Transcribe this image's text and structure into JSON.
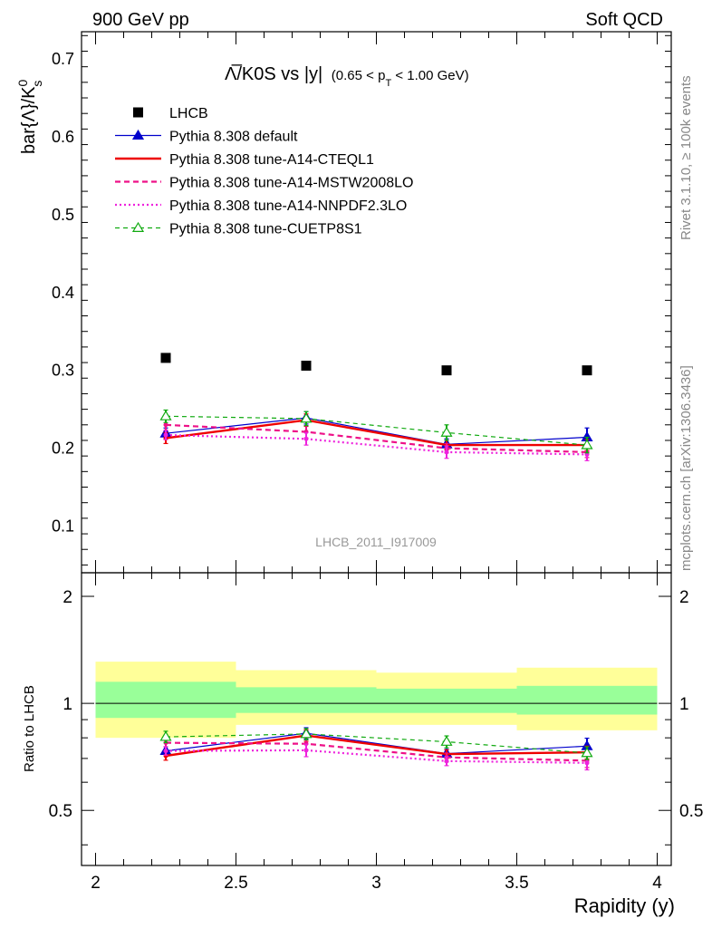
{
  "header": {
    "left": "900 GeV pp",
    "right": "Soft QCD"
  },
  "side_labels": {
    "rivet": "Rivet 3.1.10, ≥ 100k events",
    "mcplots": "mcplots.cern.ch [arXiv:1306.3436]"
  },
  "watermark": "LHCB_2011_I917009",
  "main_title": {
    "text": "Λ̅/K0S vs |y|",
    "cut": "(0.65 < p_T < 1.00 GeV)",
    "cut_prefix": "(0.65 < p",
    "cut_sub": "T",
    "cut_suffix": " < 1.00 GeV)"
  },
  "chart_data": [
    {
      "type": "scatter",
      "panel": "main",
      "ylabel": "bar{Λ}/K⁰s",
      "ylabel_main": "bar{Λ}/K",
      "ylabel_sup": "0",
      "ylabel_sub": "s",
      "xlim": [
        1.95,
        4.05
      ],
      "ylim": [
        0.04,
        0.735
      ],
      "yticks": [
        0.1,
        0.2,
        0.3,
        0.4,
        0.5,
        0.6,
        0.7
      ],
      "ytick_labels": [
        "0.1",
        "0.2",
        "0.3",
        "0.4",
        "0.5",
        "0.6",
        "0.7"
      ],
      "x": [
        2.25,
        2.75,
        3.25,
        3.75
      ],
      "x_bins": [
        [
          2.0,
          2.5
        ],
        [
          2.5,
          3.0
        ],
        [
          3.0,
          3.5
        ],
        [
          3.5,
          4.0
        ]
      ],
      "series": [
        {
          "name": "LHCB",
          "color": "#000000",
          "style": "data",
          "values": [
            0.316,
            0.306,
            0.3,
            0.3
          ]
        },
        {
          "name": "Pythia 8.308 default",
          "color": "#0000cc",
          "style": "solid-thin-triangle",
          "values": [
            0.219,
            0.239,
            0.205,
            0.214
          ],
          "errors": [
            0.007,
            0.008,
            0.007,
            0.012
          ]
        },
        {
          "name": "Pythia 8.308 tune-A14-CTEQL1",
          "color": "#ee0000",
          "style": "solid-thick",
          "values": [
            0.213,
            0.236,
            0.204,
            0.204
          ],
          "errors": [
            0.007,
            0.008,
            0.006,
            0.007
          ]
        },
        {
          "name": "Pythia 8.308 tune-A14-MSTW2008LO",
          "color": "#ee1188",
          "style": "dashed",
          "values": [
            0.23,
            0.221,
            0.2,
            0.195
          ],
          "errors": [
            0.007,
            0.008,
            0.006,
            0.007
          ]
        },
        {
          "name": "Pythia 8.308 tune-A14-NNPDF2.3LO",
          "color": "#ee22dd",
          "style": "dotted",
          "values": [
            0.217,
            0.212,
            0.195,
            0.192
          ],
          "errors": [
            0.006,
            0.008,
            0.008,
            0.008
          ]
        },
        {
          "name": "Pythia 8.308 tune-CUETP8S1",
          "color": "#11aa11",
          "style": "dashed-thin-open-triangle",
          "values": [
            0.241,
            0.238,
            0.22,
            0.204
          ],
          "errors": [
            0.008,
            0.009,
            0.01,
            0.01
          ]
        }
      ]
    },
    {
      "type": "scatter",
      "panel": "ratio",
      "xlabel": "Rapidity (y)",
      "ylabel": "Ratio to LHCB",
      "xlim": [
        1.95,
        4.05
      ],
      "ylim": [
        0.35,
        2.33
      ],
      "yscale": "log",
      "xticks": [
        2,
        2.5,
        3,
        3.5,
        4
      ],
      "xtick_labels": [
        "2",
        "2.5",
        "3",
        "3.5",
        "4"
      ],
      "yticks": [
        0.5,
        1,
        2
      ],
      "ytick_labels": [
        "0.5",
        "1",
        "2"
      ],
      "bands": {
        "inner_color": "#99ff99",
        "outer_color": "#ffff99",
        "inner": [
          [
            0.91,
            1.15
          ],
          [
            0.94,
            1.11
          ],
          [
            0.94,
            1.1
          ],
          [
            0.93,
            1.12
          ]
        ],
        "outer": [
          [
            0.8,
            1.31
          ],
          [
            0.87,
            1.24
          ],
          [
            0.87,
            1.22
          ],
          [
            0.84,
            1.26
          ]
        ]
      },
      "x": [
        2.25,
        2.75,
        3.25,
        3.75
      ],
      "series": [
        {
          "name": "Pythia 8.308 default",
          "color": "#0000cc",
          "style": "solid-thin-triangle",
          "values": [
            0.735,
            0.824,
            0.722,
            0.758
          ],
          "errors": [
            0.02,
            0.03,
            0.02,
            0.04
          ]
        },
        {
          "name": "Pythia 8.308 tune-A14-CTEQL1",
          "color": "#ee0000",
          "style": "solid-thick",
          "values": [
            0.712,
            0.812,
            0.72,
            0.728
          ],
          "errors": [
            0.02,
            0.03,
            0.02,
            0.03
          ]
        },
        {
          "name": "Pythia 8.308 tune-A14-MSTW2008LO",
          "color": "#ee1188",
          "style": "dashed",
          "values": [
            0.775,
            0.77,
            0.705,
            0.69
          ],
          "errors": [
            0.02,
            0.03,
            0.02,
            0.03
          ]
        },
        {
          "name": "Pythia 8.308 tune-A14-NNPDF2.3LO",
          "color": "#ee22dd",
          "style": "dotted",
          "values": [
            0.735,
            0.738,
            0.688,
            0.68
          ],
          "errors": [
            0.02,
            0.03,
            0.02,
            0.03
          ]
        },
        {
          "name": "Pythia 8.308 tune-CUETP8S1",
          "color": "#11aa11",
          "style": "dashed-thin-open-triangle",
          "values": [
            0.805,
            0.82,
            0.78,
            0.725
          ],
          "errors": [
            0.03,
            0.03,
            0.03,
            0.03
          ]
        }
      ]
    }
  ]
}
